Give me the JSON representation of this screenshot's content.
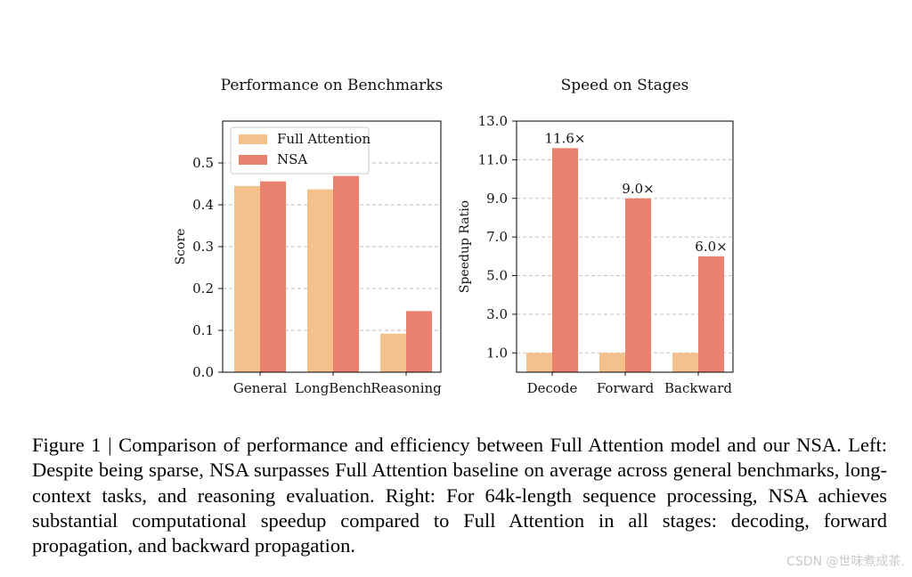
{
  "chart_data": [
    {
      "type": "bar",
      "title": "Performance on Benchmarks",
      "xlabel": "",
      "ylabel": "Score",
      "categories": [
        "General",
        "LongBench",
        "Reasoning"
      ],
      "series": [
        {
          "name": "Full Attention",
          "values": [
            0.445,
            0.437,
            0.092
          ]
        },
        {
          "name": "NSA",
          "values": [
            0.456,
            0.469,
            0.146
          ]
        }
      ],
      "ylim": [
        0.0,
        0.6
      ],
      "yticks": [
        0.0,
        0.1,
        0.2,
        0.3,
        0.4,
        0.5
      ],
      "ytick_labels": [
        "0.0",
        "0.1",
        "0.2",
        "0.3",
        "0.4",
        "0.5"
      ],
      "legend": "top-left",
      "grid": "y-dashed"
    },
    {
      "type": "bar",
      "title": "Speed on Stages",
      "xlabel": "",
      "ylabel": "Speedup Ratio",
      "categories": [
        "Decode",
        "Forward",
        "Backward"
      ],
      "series": [
        {
          "name": "Full Attention",
          "values": [
            1.0,
            1.0,
            1.0
          ]
        },
        {
          "name": "NSA",
          "values": [
            11.6,
            9.0,
            6.0
          ]
        }
      ],
      "data_labels": [
        "11.6×",
        "9.0×",
        "6.0×"
      ],
      "ylim": [
        0.0,
        13.0
      ],
      "yticks": [
        1.0,
        3.0,
        5.0,
        7.0,
        9.0,
        11.0,
        13.0
      ],
      "ytick_labels": [
        "1.0",
        "3.0",
        "5.0",
        "7.0",
        "9.0",
        "11.0",
        "13.0"
      ],
      "grid": "y-dashed"
    }
  ],
  "colors": {
    "full_attention": "#f4c08b",
    "nsa": "#e8826f",
    "grid": "#bdbdbd"
  },
  "caption": "Figure 1 | Comparison of performance and efficiency between Full Attention model and our NSA. Left: Despite being sparse, NSA surpasses Full Attention baseline on average across general benchmarks, long-context tasks, and reasoning evaluation. Right: For 64k-length sequence processing, NSA achieves substantial computational speedup compared to Full Attention in all stages: decoding, forward propagation, and backward propagation.",
  "watermark": "CSDN @世味煮成茶."
}
